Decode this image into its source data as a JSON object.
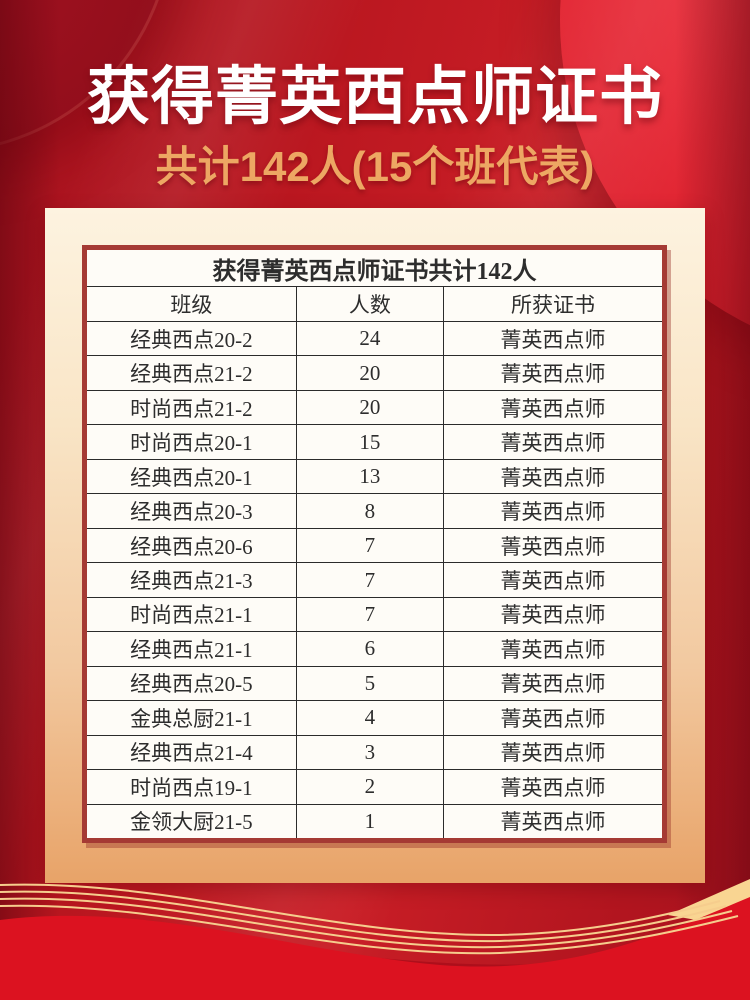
{
  "poster": {
    "title": "获得菁英西点师证书",
    "subtitle": "共计142人(15个班代表)"
  },
  "table": {
    "title": "获得菁英西点师证书共计142人",
    "columns": [
      "班级",
      "人数",
      "所获证书"
    ],
    "rows": [
      [
        "经典西点20-2",
        24,
        "菁英西点师"
      ],
      [
        "经典西点21-2",
        20,
        "菁英西点师"
      ],
      [
        "时尚西点21-2",
        20,
        "菁英西点师"
      ],
      [
        "时尚西点20-1",
        15,
        "菁英西点师"
      ],
      [
        "经典西点20-1",
        13,
        "菁英西点师"
      ],
      [
        "经典西点20-3",
        8,
        "菁英西点师"
      ],
      [
        "经典西点20-6",
        7,
        "菁英西点师"
      ],
      [
        "经典西点21-3",
        7,
        "菁英西点师"
      ],
      [
        "时尚西点21-1",
        7,
        "菁英西点师"
      ],
      [
        "经典西点21-1",
        6,
        "菁英西点师"
      ],
      [
        "经典西点20-5",
        5,
        "菁英西点师"
      ],
      [
        "金典总厨21-1",
        4,
        "菁英西点师"
      ],
      [
        "经典西点21-4",
        3,
        "菁英西点师"
      ],
      [
        "时尚西点19-1",
        2,
        "菁英西点师"
      ],
      [
        "金领大厨21-5",
        1,
        "菁英西点师"
      ]
    ]
  },
  "colors": {
    "background_red": "#bb1722",
    "title_text": "#ffffff",
    "subtitle_gold": "#eda763",
    "panel_top": "#fdf3e0",
    "panel_bottom": "#e8a368",
    "table_border": "#a53a34",
    "table_line": "#2b2b2b",
    "wave_red": "#dc1220",
    "gold_line": "#f6cd8d"
  }
}
